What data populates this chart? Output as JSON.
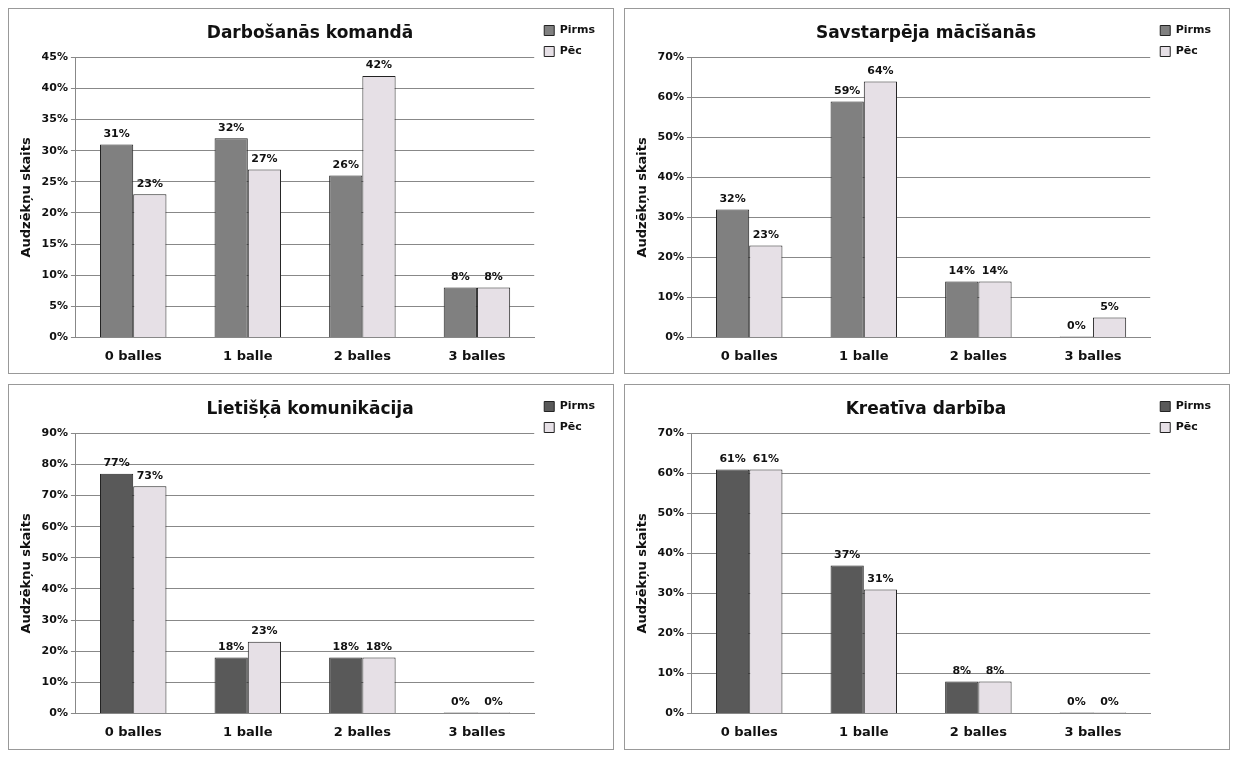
{
  "chart_data": [
    {
      "type": "bar",
      "title": "Darbošanās komandā",
      "ylabel": "Audzēkņu skaits",
      "categories": [
        "0 balles",
        "1 balle",
        "2 balles",
        "3 balles"
      ],
      "series": [
        {
          "name": "Pirms",
          "color": "#808080",
          "values": [
            31,
            32,
            26,
            8
          ],
          "value_labels": [
            "31%",
            "32%",
            "26%",
            "8%"
          ]
        },
        {
          "name": "Pēc",
          "color": "#e6e0e6",
          "values": [
            23,
            27,
            42,
            8
          ],
          "value_labels": [
            "23%",
            "27%",
            "42%",
            "8%"
          ]
        }
      ],
      "ylim": [
        0,
        45
      ],
      "yticks": [
        {
          "value": 0,
          "label": "0%"
        },
        {
          "value": 5,
          "label": "5%"
        },
        {
          "value": 10,
          "label": "10%"
        },
        {
          "value": 15,
          "label": "15%"
        },
        {
          "value": 20,
          "label": "20%"
        },
        {
          "value": 25,
          "label": "25%"
        },
        {
          "value": 30,
          "label": "30%"
        },
        {
          "value": 35,
          "label": "35%"
        },
        {
          "value": 40,
          "label": "40%"
        },
        {
          "value": 45,
          "label": "45%"
        }
      ],
      "grid": "y",
      "legend": "top right"
    },
    {
      "type": "bar",
      "title": "Savstarpēja mācīšanās",
      "ylabel": "Audzēkņu skaits",
      "categories": [
        "0 balles",
        "1 balle",
        "2 balles",
        "3 balles"
      ],
      "series": [
        {
          "name": "Pirms",
          "color": "#808080",
          "values": [
            32,
            59,
            14,
            0
          ],
          "value_labels": [
            "32%",
            "59%",
            "14%",
            "0%"
          ]
        },
        {
          "name": "Pēc",
          "color": "#e6e0e6",
          "values": [
            23,
            64,
            14,
            5
          ],
          "value_labels": [
            "23%",
            "64%",
            "14%",
            "5%"
          ]
        }
      ],
      "ylim": [
        0,
        70
      ],
      "yticks": [
        {
          "value": 0,
          "label": "0%"
        },
        {
          "value": 10,
          "label": "10%"
        },
        {
          "value": 20,
          "label": "20%"
        },
        {
          "value": 30,
          "label": "30%"
        },
        {
          "value": 40,
          "label": "40%"
        },
        {
          "value": 50,
          "label": "50%"
        },
        {
          "value": 60,
          "label": "60%"
        },
        {
          "value": 70,
          "label": "70%"
        }
      ],
      "grid": "y",
      "legend": "top right"
    },
    {
      "type": "bar",
      "title": "Lietišķā komunikācija",
      "ylabel": "Audzēkņu skaits",
      "categories": [
        "0 balles",
        "1 balle",
        "2 balles",
        "3 balles"
      ],
      "series": [
        {
          "name": "Pirms",
          "color": "#595959",
          "values": [
            77,
            18,
            18,
            0
          ],
          "value_labels": [
            "77%",
            "18%",
            "18%",
            "0%"
          ]
        },
        {
          "name": "Pēc",
          "color": "#e6e0e6",
          "values": [
            73,
            23,
            18,
            0
          ],
          "value_labels": [
            "73%",
            "23%",
            "18%",
            "0%"
          ]
        }
      ],
      "ylim": [
        0,
        90
      ],
      "yticks": [
        {
          "value": 0,
          "label": "0%"
        },
        {
          "value": 10,
          "label": "10%"
        },
        {
          "value": 20,
          "label": "20%"
        },
        {
          "value": 30,
          "label": "30%"
        },
        {
          "value": 40,
          "label": "40%"
        },
        {
          "value": 50,
          "label": "50%"
        },
        {
          "value": 60,
          "label": "60%"
        },
        {
          "value": 70,
          "label": "70%"
        },
        {
          "value": 80,
          "label": "80%"
        },
        {
          "value": 90,
          "label": "90%"
        }
      ],
      "grid": "y",
      "legend": "top right"
    },
    {
      "type": "bar",
      "title": "Kreatīva darbība",
      "ylabel": "Audzēkņu skaits",
      "categories": [
        "0 balles",
        "1 balle",
        "2 balles",
        "3 balles"
      ],
      "series": [
        {
          "name": "Pirms",
          "color": "#595959",
          "values": [
            61,
            37,
            8,
            0
          ],
          "value_labels": [
            "61%",
            "37%",
            "8%",
            "0%"
          ]
        },
        {
          "name": "Pēc",
          "color": "#e6e0e6",
          "values": [
            61,
            31,
            8,
            0
          ],
          "value_labels": [
            "61%",
            "31%",
            "8%",
            "0%"
          ]
        }
      ],
      "ylim": [
        0,
        70
      ],
      "yticks": [
        {
          "value": 0,
          "label": "0%"
        },
        {
          "value": 10,
          "label": "10%"
        },
        {
          "value": 20,
          "label": "20%"
        },
        {
          "value": 30,
          "label": "30%"
        },
        {
          "value": 40,
          "label": "40%"
        },
        {
          "value": 50,
          "label": "50%"
        },
        {
          "value": 60,
          "label": "60%"
        },
        {
          "value": 70,
          "label": "70%"
        }
      ],
      "grid": "y",
      "legend": "top right"
    }
  ]
}
